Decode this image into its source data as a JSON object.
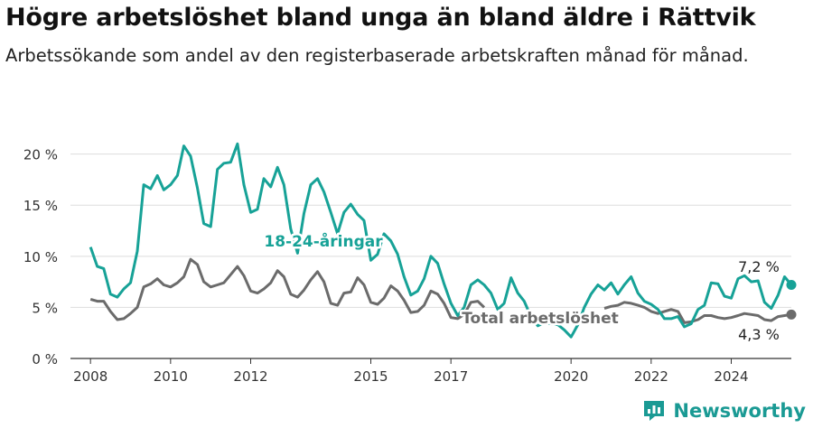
{
  "title": "Högre arbetslöshet bland unga än bland äldre i Rättvik",
  "subtitle": "Arbetssökande som andel av den registerbaserade arbetskraften månad för månad.",
  "brand": "Newsworthy",
  "colors": {
    "youth": "#17a297",
    "total": "#6b6b6b",
    "grid": "#dddddd",
    "axis": "#333333"
  },
  "chart_data": {
    "type": "line",
    "x_ticks": [
      "2008",
      "2010",
      "2012",
      "2015",
      "2017",
      "2020",
      "2022",
      "2024"
    ],
    "y_ticks": [
      "0 %",
      "5 %",
      "10 %",
      "15 %",
      "20 %"
    ],
    "ylim": [
      0,
      22
    ],
    "xlim": [
      2007.5,
      2025.5
    ],
    "grid": "horizontal",
    "series": [
      {
        "name": "18-24-åringar",
        "end_label": "7,2 %",
        "points": [
          [
            2008.0,
            10.9
          ],
          [
            2008.17,
            9.0
          ],
          [
            2008.33,
            8.8
          ],
          [
            2008.5,
            6.3
          ],
          [
            2008.67,
            6.0
          ],
          [
            2008.83,
            6.8
          ],
          [
            2009.0,
            7.4
          ],
          [
            2009.17,
            10.5
          ],
          [
            2009.33,
            17.0
          ],
          [
            2009.5,
            16.6
          ],
          [
            2009.67,
            17.9
          ],
          [
            2009.83,
            16.5
          ],
          [
            2010.0,
            17.0
          ],
          [
            2010.17,
            17.9
          ],
          [
            2010.33,
            20.8
          ],
          [
            2010.5,
            19.8
          ],
          [
            2010.67,
            16.7
          ],
          [
            2010.83,
            13.2
          ],
          [
            2011.0,
            12.9
          ],
          [
            2011.17,
            18.5
          ],
          [
            2011.33,
            19.1
          ],
          [
            2011.5,
            19.2
          ],
          [
            2011.67,
            21.0
          ],
          [
            2011.83,
            17.0
          ],
          [
            2012.0,
            14.3
          ],
          [
            2012.17,
            14.6
          ],
          [
            2012.33,
            17.6
          ],
          [
            2012.5,
            16.8
          ],
          [
            2012.67,
            18.7
          ],
          [
            2012.83,
            17.0
          ],
          [
            2013.0,
            12.7
          ],
          [
            2013.17,
            10.3
          ],
          [
            2013.33,
            14.2
          ],
          [
            2013.5,
            17.0
          ],
          [
            2013.67,
            17.6
          ],
          [
            2013.83,
            16.3
          ],
          [
            2014.0,
            14.3
          ],
          [
            2014.17,
            12.2
          ],
          [
            2014.33,
            14.3
          ],
          [
            2014.5,
            15.1
          ],
          [
            2014.67,
            14.1
          ],
          [
            2014.83,
            13.5
          ],
          [
            2015.0,
            9.6
          ],
          [
            2015.17,
            10.2
          ],
          [
            2015.33,
            12.2
          ],
          [
            2015.5,
            11.5
          ],
          [
            2015.67,
            10.2
          ],
          [
            2015.83,
            8.0
          ],
          [
            2016.0,
            6.2
          ],
          [
            2016.17,
            6.6
          ],
          [
            2016.33,
            7.8
          ],
          [
            2016.5,
            10.0
          ],
          [
            2016.67,
            9.3
          ],
          [
            2016.83,
            7.3
          ],
          [
            2017.0,
            5.4
          ],
          [
            2017.17,
            4.2
          ],
          [
            2017.33,
            5.0
          ],
          [
            2017.5,
            7.2
          ],
          [
            2017.67,
            7.7
          ],
          [
            2017.83,
            7.2
          ],
          [
            2018.0,
            6.4
          ],
          [
            2018.17,
            4.8
          ],
          [
            2018.33,
            5.4
          ],
          [
            2018.5,
            7.9
          ],
          [
            2018.67,
            6.4
          ],
          [
            2018.83,
            5.6
          ],
          [
            2019.0,
            4.1
          ],
          [
            2019.17,
            3.2
          ],
          [
            2019.33,
            3.5
          ],
          [
            2019.5,
            3.4
          ],
          [
            2019.67,
            3.3
          ],
          [
            2019.83,
            2.8
          ],
          [
            2020.0,
            2.1
          ],
          [
            2020.17,
            3.3
          ],
          [
            2020.33,
            5.0
          ],
          [
            2020.5,
            6.3
          ],
          [
            2020.67,
            7.2
          ],
          [
            2020.83,
            6.7
          ],
          [
            2021.0,
            7.4
          ],
          [
            2021.17,
            6.3
          ],
          [
            2021.33,
            7.2
          ],
          [
            2021.5,
            8.0
          ],
          [
            2021.67,
            6.4
          ],
          [
            2021.83,
            5.6
          ],
          [
            2022.0,
            5.3
          ],
          [
            2022.17,
            4.8
          ],
          [
            2022.33,
            3.9
          ],
          [
            2022.5,
            3.9
          ],
          [
            2022.67,
            4.1
          ],
          [
            2022.83,
            3.1
          ],
          [
            2023.0,
            3.4
          ],
          [
            2023.17,
            4.8
          ],
          [
            2023.33,
            5.2
          ],
          [
            2023.5,
            7.4
          ],
          [
            2023.67,
            7.3
          ],
          [
            2023.83,
            6.1
          ],
          [
            2024.0,
            5.9
          ],
          [
            2024.17,
            7.8
          ],
          [
            2024.33,
            8.1
          ],
          [
            2024.5,
            7.5
          ],
          [
            2024.67,
            7.6
          ],
          [
            2024.83,
            5.5
          ],
          [
            2025.0,
            4.9
          ],
          [
            2025.17,
            6.2
          ],
          [
            2025.33,
            8.0
          ],
          [
            2025.5,
            7.2
          ]
        ]
      },
      {
        "name": "Total arbetslöshet",
        "end_label": "4,3 %",
        "points": [
          [
            2008.0,
            5.8
          ],
          [
            2008.17,
            5.6
          ],
          [
            2008.33,
            5.6
          ],
          [
            2008.5,
            4.6
          ],
          [
            2008.67,
            3.8
          ],
          [
            2008.83,
            3.9
          ],
          [
            2009.0,
            4.4
          ],
          [
            2009.17,
            5.0
          ],
          [
            2009.33,
            7.0
          ],
          [
            2009.5,
            7.3
          ],
          [
            2009.67,
            7.8
          ],
          [
            2009.83,
            7.2
          ],
          [
            2010.0,
            7.0
          ],
          [
            2010.17,
            7.4
          ],
          [
            2010.33,
            8.0
          ],
          [
            2010.5,
            9.7
          ],
          [
            2010.67,
            9.2
          ],
          [
            2010.83,
            7.5
          ],
          [
            2011.0,
            7.0
          ],
          [
            2011.17,
            7.2
          ],
          [
            2011.33,
            7.4
          ],
          [
            2011.5,
            8.2
          ],
          [
            2011.67,
            9.0
          ],
          [
            2011.83,
            8.1
          ],
          [
            2012.0,
            6.6
          ],
          [
            2012.17,
            6.4
          ],
          [
            2012.33,
            6.8
          ],
          [
            2012.5,
            7.4
          ],
          [
            2012.67,
            8.6
          ],
          [
            2012.83,
            8.0
          ],
          [
            2013.0,
            6.3
          ],
          [
            2013.17,
            6.0
          ],
          [
            2013.33,
            6.7
          ],
          [
            2013.5,
            7.7
          ],
          [
            2013.67,
            8.5
          ],
          [
            2013.83,
            7.5
          ],
          [
            2014.0,
            5.4
          ],
          [
            2014.17,
            5.2
          ],
          [
            2014.33,
            6.4
          ],
          [
            2014.5,
            6.5
          ],
          [
            2014.67,
            7.9
          ],
          [
            2014.83,
            7.2
          ],
          [
            2015.0,
            5.5
          ],
          [
            2015.17,
            5.3
          ],
          [
            2015.33,
            5.9
          ],
          [
            2015.5,
            7.1
          ],
          [
            2015.67,
            6.6
          ],
          [
            2015.83,
            5.7
          ],
          [
            2016.0,
            4.5
          ],
          [
            2016.17,
            4.6
          ],
          [
            2016.33,
            5.2
          ],
          [
            2016.5,
            6.6
          ],
          [
            2016.67,
            6.3
          ],
          [
            2016.83,
            5.4
          ],
          [
            2017.0,
            4.0
          ],
          [
            2017.17,
            3.9
          ],
          [
            2017.33,
            4.3
          ],
          [
            2017.5,
            5.5
          ],
          [
            2017.67,
            5.6
          ],
          [
            2017.83,
            5.0
          ]
        ],
        "points_2": [
          [
            2020.83,
            4.9
          ],
          [
            2021.0,
            5.1
          ],
          [
            2021.17,
            5.2
          ],
          [
            2021.33,
            5.5
          ],
          [
            2021.5,
            5.4
          ],
          [
            2021.67,
            5.2
          ],
          [
            2021.83,
            5.0
          ],
          [
            2022.0,
            4.6
          ],
          [
            2022.17,
            4.4
          ],
          [
            2022.33,
            4.6
          ],
          [
            2022.5,
            4.8
          ],
          [
            2022.67,
            4.6
          ],
          [
            2022.83,
            3.5
          ],
          [
            2023.0,
            3.6
          ],
          [
            2023.17,
            3.8
          ],
          [
            2023.33,
            4.2
          ],
          [
            2023.5,
            4.2
          ],
          [
            2023.67,
            4.0
          ],
          [
            2023.83,
            3.9
          ],
          [
            2024.0,
            4.0
          ],
          [
            2024.17,
            4.2
          ],
          [
            2024.33,
            4.4
          ],
          [
            2024.5,
            4.3
          ],
          [
            2024.67,
            4.2
          ],
          [
            2024.83,
            3.8
          ],
          [
            2025.0,
            3.7
          ],
          [
            2025.17,
            4.1
          ],
          [
            2025.33,
            4.2
          ],
          [
            2025.5,
            4.3
          ]
        ]
      }
    ]
  }
}
